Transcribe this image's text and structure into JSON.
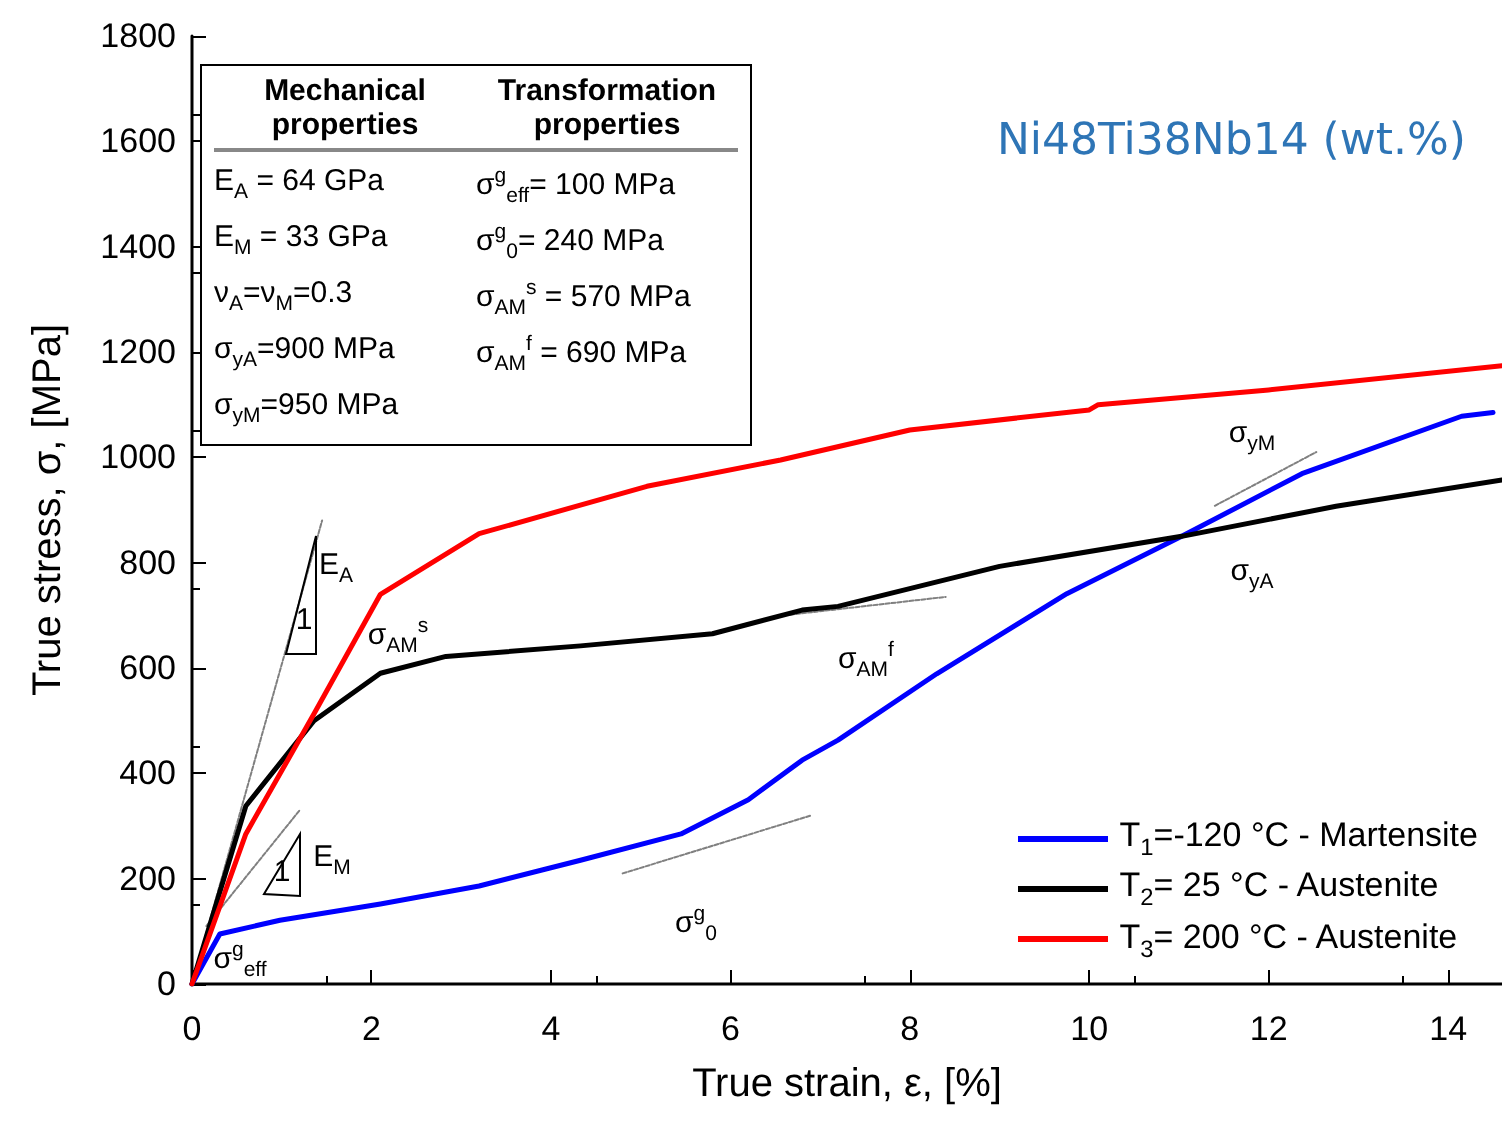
{
  "chart_data": {
    "type": "line",
    "title": "Ni48Ti38Nb14 (wt.%)",
    "xlabel": "True strain, ε, [%]",
    "ylabel": "True stress, σ, [MPa]",
    "xlim": [
      0,
      14.6
    ],
    "xticks": [
      0,
      2,
      4,
      6,
      8,
      10,
      12,
      14
    ],
    "ylim": [
      0,
      1800
    ],
    "yticks": [
      0,
      200,
      400,
      600,
      800,
      1000,
      1200,
      1400,
      1600,
      1800
    ],
    "grid": false,
    "legend": "bottom right",
    "marker": "none",
    "line_style": "solid",
    "series": [
      {
        "name": "T$_{1}$=-120 °C - Martensite",
        "color": "#0000ff",
        "x": [
          0,
          0.31,
          0.98,
          2.1,
          3.2,
          4.33,
          5.45,
          6.2,
          6.8,
          7.2,
          8.3,
          9.75,
          11.03,
          12.37,
          14.15,
          14.5
        ],
        "values": [
          0,
          95,
          121,
          152,
          186,
          235,
          285,
          350,
          425,
          463,
          589,
          741,
          850,
          969,
          1078,
          1085
        ]
      },
      {
        "name": "T$_{2}$=  25  °C - Austenite",
        "color": "#000000",
        "x": [
          0,
          0.6,
          1.36,
          2.1,
          2.83,
          4.33,
          5.8,
          6.8,
          7.2,
          9.0,
          11.03,
          12.75,
          14.6
        ],
        "values": [
          0,
          338,
          500,
          590,
          622,
          642,
          665,
          710,
          717,
          793,
          850,
          907,
          957
        ]
      },
      {
        "name": "T$_{3}$= 200 °C - Austenite",
        "color": "#ff0000",
        "x": [
          0,
          0.6,
          1.36,
          2.1,
          3.2,
          5.07,
          6.56,
          8,
          10,
          10.1,
          12,
          14.6
        ],
        "values": [
          0,
          285,
          513,
          740,
          855,
          945,
          995,
          1052,
          1090,
          1100,
          1128,
          1174
        ]
      },
      {
        "color": "#808080",
        "line_style": "dotted",
        "x": [
          0,
          1.45
        ],
        "values": [
          0,
          880
        ]
      },
      {
        "color": "#808080",
        "line_style": "dotted",
        "x": [
          0.16,
          1.2
        ],
        "values": [
          110,
          330
        ]
      },
      {
        "color": "#808080",
        "line_style": "dotted",
        "x": [
          4.8,
          6.9
        ],
        "values": [
          210,
          320
        ]
      },
      {
        "color": "#808080",
        "line_style": "dotted",
        "x": [
          6.6,
          8.4
        ],
        "values": [
          700,
          735
        ]
      },
      {
        "color": "#808080",
        "line_style": "dotted",
        "x": [
          11.4,
          12.53
        ],
        "values": [
          908,
          1010
        ]
      }
    ],
    "annotations": [
      "Mechanical properties",
      "Transformation properties",
      "E$_{A}$ = 64 GPa",
      "σ$^{g}$$_{eff}$= 100 MPa",
      "E$_{M}$ = 33 GPa",
      "σ$^{g}$$_{0}$= 240 MPa",
      "ν$_{A}$=ν$_{M}$=0.3",
      "σ$_{AM}$$^{s}$ = 570 MPa",
      "σ$_{yA}$=900 MPa",
      "σ$_{AM}$$^{f}$ = 690 MPa",
      "σ$_{yM}$=950 MPa",
      "E$_{A}$",
      "1",
      "σ$_{AM}$$^{s}$",
      "E$_{M}$",
      "1",
      "σ$^{g}$$_{eff}$",
      "σ$^{g}$$_{0}$",
      "σ$_{AM}$$^{f}$",
      "σ$_{yM}$",
      "σ$_{yA}$"
    ]
  }
}
